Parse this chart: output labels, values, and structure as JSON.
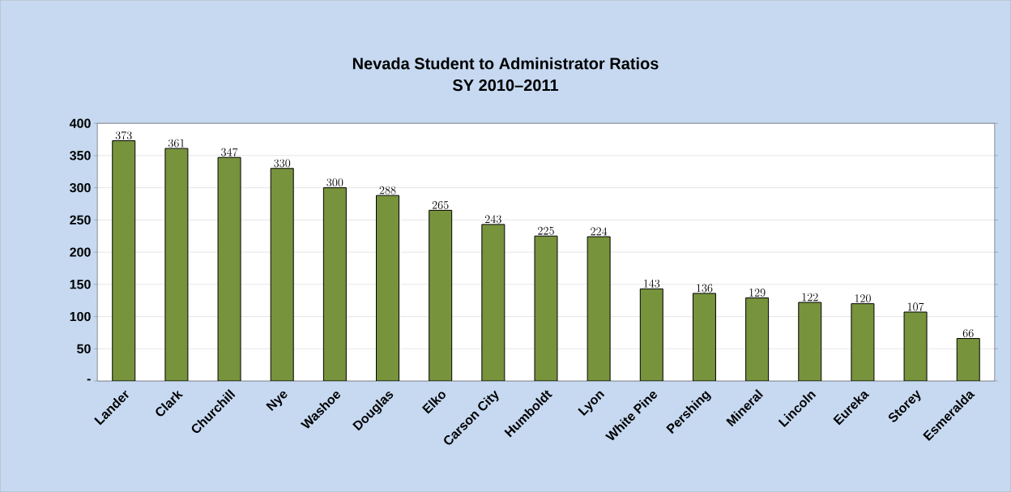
{
  "chart_data": {
    "type": "bar",
    "title": "Nevada Student to Administrator Ratios",
    "subtitle": "SY 2010–2011",
    "categories": [
      "Lander",
      "Clark",
      "Churchill",
      "Nye",
      "Washoe",
      "Douglas",
      "Elko",
      "Carson City",
      "Humboldt",
      "Lyon",
      "White Pine",
      "Pershing",
      "Mineral",
      "Lincoln",
      "Eureka",
      "Storey",
      "Esmeralda"
    ],
    "values": [
      373,
      361,
      347,
      330,
      300,
      288,
      265,
      243,
      225,
      224,
      143,
      136,
      129,
      122,
      120,
      107,
      66
    ],
    "color": "#77933c",
    "ylim": [
      0,
      400
    ],
    "yticks": [
      {
        "value": 0,
        "label": "-"
      },
      50,
      100,
      150,
      200,
      250,
      300,
      350,
      400
    ],
    "grid": "y",
    "data_labels": true
  }
}
